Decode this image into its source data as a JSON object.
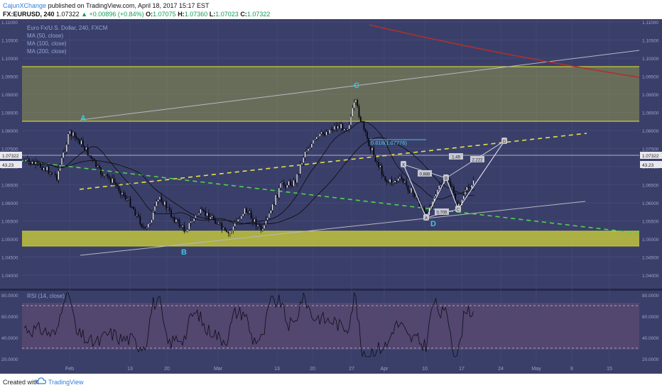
{
  "header": {
    "author": "CajunXChange",
    "published_text": "published on TradingView.com, April 18, 2017 15:17 EST",
    "symbol": "FX:EURUSD, 240",
    "last": "1.07322",
    "change": "+0.00896 (+0.84%)",
    "o_label": "O:",
    "o_value": "1.07075",
    "h_label": "H:",
    "h_value": "1.07360",
    "l_label": "L:",
    "l_value": "1.07023",
    "c_label": "C:",
    "c_value": "1.07322"
  },
  "legend": {
    "title": "Euro Fx/U.S. Dollar, 240, FXCM",
    "ma50": "MA (50, close)",
    "ma100": "MA (100, close)",
    "ma200": "MA (200, close)",
    "rsi": "RSI (14, close)"
  },
  "footer": {
    "created_with": "Created with",
    "brand": "TradingView"
  },
  "chart_data": {
    "type": "candlestick",
    "price_axis_ticks": [
      "1.11000",
      "1.10500",
      "1.10000",
      "1.09500",
      "1.09000",
      "1.08500",
      "1.08000",
      "1.07500",
      "1.07000",
      "1.06500",
      "1.06000",
      "1.05500",
      "1.05000",
      "1.04500",
      "1.04000",
      "1.03500",
      "1.03000",
      "1.02500",
      "1.02000",
      "1.01500",
      "1.01000"
    ],
    "price_axis_labels_shown": [
      "1.11000",
      "1.10500",
      "1.10000",
      "1.09500",
      "1.09000",
      "1.08500",
      "1.08000",
      "1.07500",
      "1.07000",
      "1.06500",
      "1.06000",
      "1.05500",
      "1.05000",
      "1.04500",
      "1.04000"
    ],
    "rsi_axis_labels": [
      "80.0000",
      "60.0000",
      "40.0000",
      "20.0000"
    ],
    "time_axis_labels": [
      "Feb",
      "13",
      "20",
      "Mar",
      "13",
      "20",
      "27",
      "Apr",
      "10",
      "17",
      "24",
      "May",
      "8",
      "15"
    ],
    "current_price_label": "1.07322",
    "current_rsi_label": "43.23",
    "pattern_points": [
      "A",
      "B",
      "C",
      "D"
    ],
    "harmonic_labels": [
      "X",
      "A",
      "B",
      "C",
      "D"
    ],
    "harmonic_ratios": [
      "0.888",
      "0.705",
      "1.49",
      "2.222"
    ],
    "fib_label": "0.618(1.07776)",
    "colors": {
      "background": "#3a3f6a",
      "zone": "#c9cc3a",
      "ma_line": "#111111",
      "long_ma": "#b0302c",
      "dashed_yellow": "#e5e14a",
      "dashed_green": "#4cd64a",
      "channel": "#b8b8c0",
      "pattern_label": "#3ec6e0",
      "rsi_bg": "#5c4a72"
    }
  }
}
